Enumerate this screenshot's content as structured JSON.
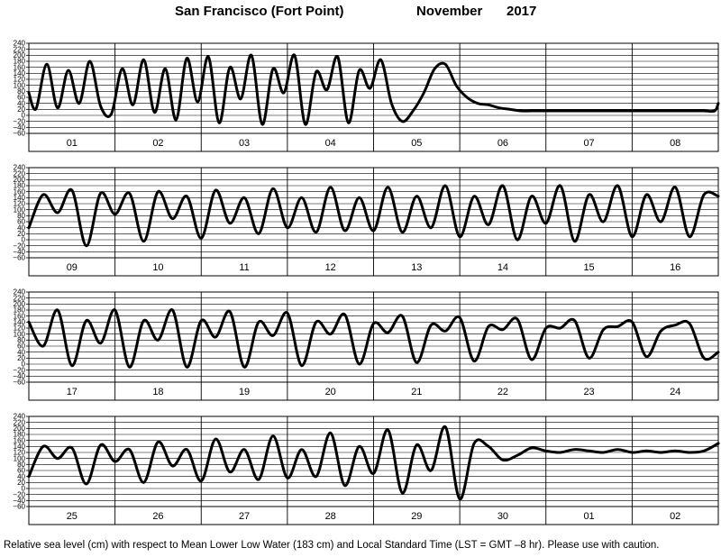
{
  "header": {
    "station": "San Francisco (Fort Point)",
    "month": "November",
    "year": "2017"
  },
  "footer": {
    "note": "Relative sea level (cm) with respect to Mean Lower Low Water (183 cm) and Local Standard Time (LST = GMT –8 hr). Please use with caution."
  },
  "chart_data": [
    {
      "type": "line",
      "ylim": [
        -60,
        240
      ],
      "yticks": [
        240,
        220,
        200,
        180,
        160,
        140,
        120,
        100,
        80,
        60,
        40,
        20,
        0,
        -20,
        -40,
        -60
      ],
      "ytick_labels": [
        "240",
        "220",
        "200",
        "180",
        "160",
        "140",
        "120",
        "100",
        "80",
        "60",
        "40",
        "20",
        "0",
        "−20",
        "−40",
        "−60"
      ],
      "day_labels": [
        "01",
        "02",
        "03",
        "04",
        "05",
        "06",
        "07",
        "08"
      ],
      "grid": true,
      "series": [
        {
          "x": [
            0,
            2,
            5,
            8,
            11,
            14,
            17,
            20,
            23,
            26,
            29,
            32,
            35,
            38,
            41,
            44,
            47,
            50,
            53,
            56,
            59,
            62,
            65,
            68,
            71,
            74,
            77,
            80,
            83,
            86,
            89,
            92,
            95,
            98,
            101,
            104,
            107,
            110,
            113,
            116,
            119,
            122,
            125,
            128,
            131,
            134,
            137,
            140,
            143,
            146,
            149,
            152,
            155,
            158,
            161,
            164,
            167,
            170,
            173,
            176,
            179,
            182,
            185,
            188,
            191,
            192
          ],
          "y": [
            75,
            22,
            170,
            25,
            150,
            40,
            180,
            30,
            5,
            155,
            35,
            185,
            10,
            155,
            -15,
            190,
            45,
            195,
            -25,
            160,
            55,
            200,
            -30,
            155,
            75,
            200,
            -30,
            145,
            85,
            195,
            -25,
            150,
            90,
            185,
            40,
            -20,
            15,
            75,
            155,
            170,
            100,
            60,
            40,
            35,
            25,
            20,
            15,
            15,
            15,
            15,
            15,
            15,
            15,
            15,
            15,
            15,
            15,
            15,
            15,
            15,
            15,
            15,
            15,
            15,
            15,
            40
          ]
        }
      ]
    },
    {
      "type": "line",
      "ylim": [
        -60,
        240
      ],
      "yticks": [
        240,
        220,
        200,
        180,
        160,
        140,
        120,
        100,
        80,
        60,
        40,
        20,
        0,
        -20,
        -40,
        -60
      ],
      "ytick_labels": [
        "240",
        "220",
        "200",
        "180",
        "160",
        "140",
        "120",
        "100",
        "80",
        "60",
        "40",
        "20",
        "0",
        "−20",
        "−40",
        "−60"
      ],
      "day_labels": [
        "09",
        "10",
        "11",
        "12",
        "13",
        "14",
        "15",
        "16"
      ],
      "grid": true,
      "series": [
        {
          "x": [
            0,
            4,
            8,
            12,
            16,
            20,
            24,
            28,
            32,
            36,
            40,
            44,
            48,
            52,
            56,
            60,
            64,
            68,
            72,
            76,
            80,
            84,
            88,
            92,
            96,
            100,
            104,
            108,
            112,
            116,
            120,
            124,
            128,
            132,
            136,
            140,
            144,
            148,
            152,
            156,
            160,
            164,
            168,
            172,
            176,
            180,
            184,
            188,
            192
          ],
          "y": [
            40,
            150,
            90,
            165,
            -20,
            155,
            85,
            155,
            -5,
            160,
            70,
            145,
            5,
            165,
            55,
            140,
            20,
            170,
            40,
            140,
            25,
            175,
            30,
            140,
            30,
            175,
            25,
            145,
            40,
            180,
            10,
            145,
            50,
            180,
            0,
            145,
            55,
            180,
            -5,
            150,
            60,
            180,
            10,
            150,
            60,
            175,
            10,
            150,
            145
          ]
        }
      ]
    },
    {
      "type": "line",
      "ylim": [
        -60,
        240
      ],
      "yticks": [
        240,
        220,
        200,
        180,
        160,
        140,
        120,
        100,
        80,
        60,
        40,
        20,
        0,
        -20,
        -40,
        -60
      ],
      "ytick_labels": [
        "240",
        "220",
        "200",
        "180",
        "160",
        "140",
        "120",
        "100",
        "80",
        "60",
        "40",
        "20",
        "0",
        "−20",
        "−40",
        "−60"
      ],
      "day_labels": [
        "17",
        "18",
        "19",
        "20",
        "21",
        "22",
        "23",
        "24"
      ],
      "grid": true,
      "series": [
        {
          "x": [
            0,
            4,
            8,
            12,
            16,
            20,
            24,
            28,
            32,
            36,
            40,
            44,
            48,
            52,
            56,
            60,
            64,
            68,
            72,
            76,
            80,
            84,
            88,
            92,
            96,
            100,
            104,
            108,
            112,
            116,
            120,
            124,
            128,
            132,
            136,
            140,
            144,
            148,
            152,
            156,
            160,
            164,
            168,
            172,
            176,
            180,
            184,
            188,
            192
          ],
          "y": [
            140,
            60,
            180,
            -5,
            145,
            70,
            180,
            -10,
            145,
            80,
            180,
            -10,
            145,
            90,
            175,
            -10,
            140,
            95,
            170,
            -5,
            140,
            100,
            165,
            0,
            135,
            105,
            160,
            5,
            130,
            110,
            155,
            10,
            125,
            115,
            150,
            15,
            120,
            120,
            145,
            20,
            115,
            125,
            140,
            25,
            110,
            130,
            135,
            20,
            40
          ]
        }
      ]
    },
    {
      "type": "line",
      "ylim": [
        -60,
        240
      ],
      "yticks": [
        240,
        220,
        200,
        180,
        160,
        140,
        120,
        100,
        80,
        60,
        40,
        20,
        0,
        -20,
        -40,
        -60
      ],
      "ytick_labels": [
        "240",
        "220",
        "200",
        "180",
        "160",
        "140",
        "120",
        "100",
        "80",
        "60",
        "40",
        "20",
        "0",
        "−20",
        "−40",
        "−60"
      ],
      "day_labels": [
        "25",
        "26",
        "27",
        "28",
        "29",
        "30",
        "01",
        "02"
      ],
      "grid": true,
      "series": [
        {
          "x": [
            0,
            4,
            8,
            12,
            16,
            20,
            24,
            28,
            32,
            36,
            40,
            44,
            48,
            52,
            56,
            60,
            64,
            68,
            72,
            76,
            80,
            84,
            88,
            92,
            96,
            100,
            104,
            108,
            112,
            116,
            120,
            124,
            128,
            132,
            136,
            140,
            144,
            148,
            152,
            156,
            160,
            164,
            168,
            172,
            176,
            180,
            184,
            188,
            192
          ],
          "y": [
            40,
            140,
            100,
            135,
            15,
            145,
            90,
            130,
            20,
            155,
            75,
            130,
            25,
            165,
            55,
            130,
            30,
            175,
            35,
            130,
            40,
            185,
            10,
            140,
            50,
            195,
            -15,
            145,
            60,
            205,
            -35,
            150,
            140,
            95,
            110,
            135,
            125,
            120,
            130,
            125,
            120,
            130,
            120,
            125,
            120,
            125,
            120,
            125,
            150
          ]
        }
      ]
    }
  ]
}
